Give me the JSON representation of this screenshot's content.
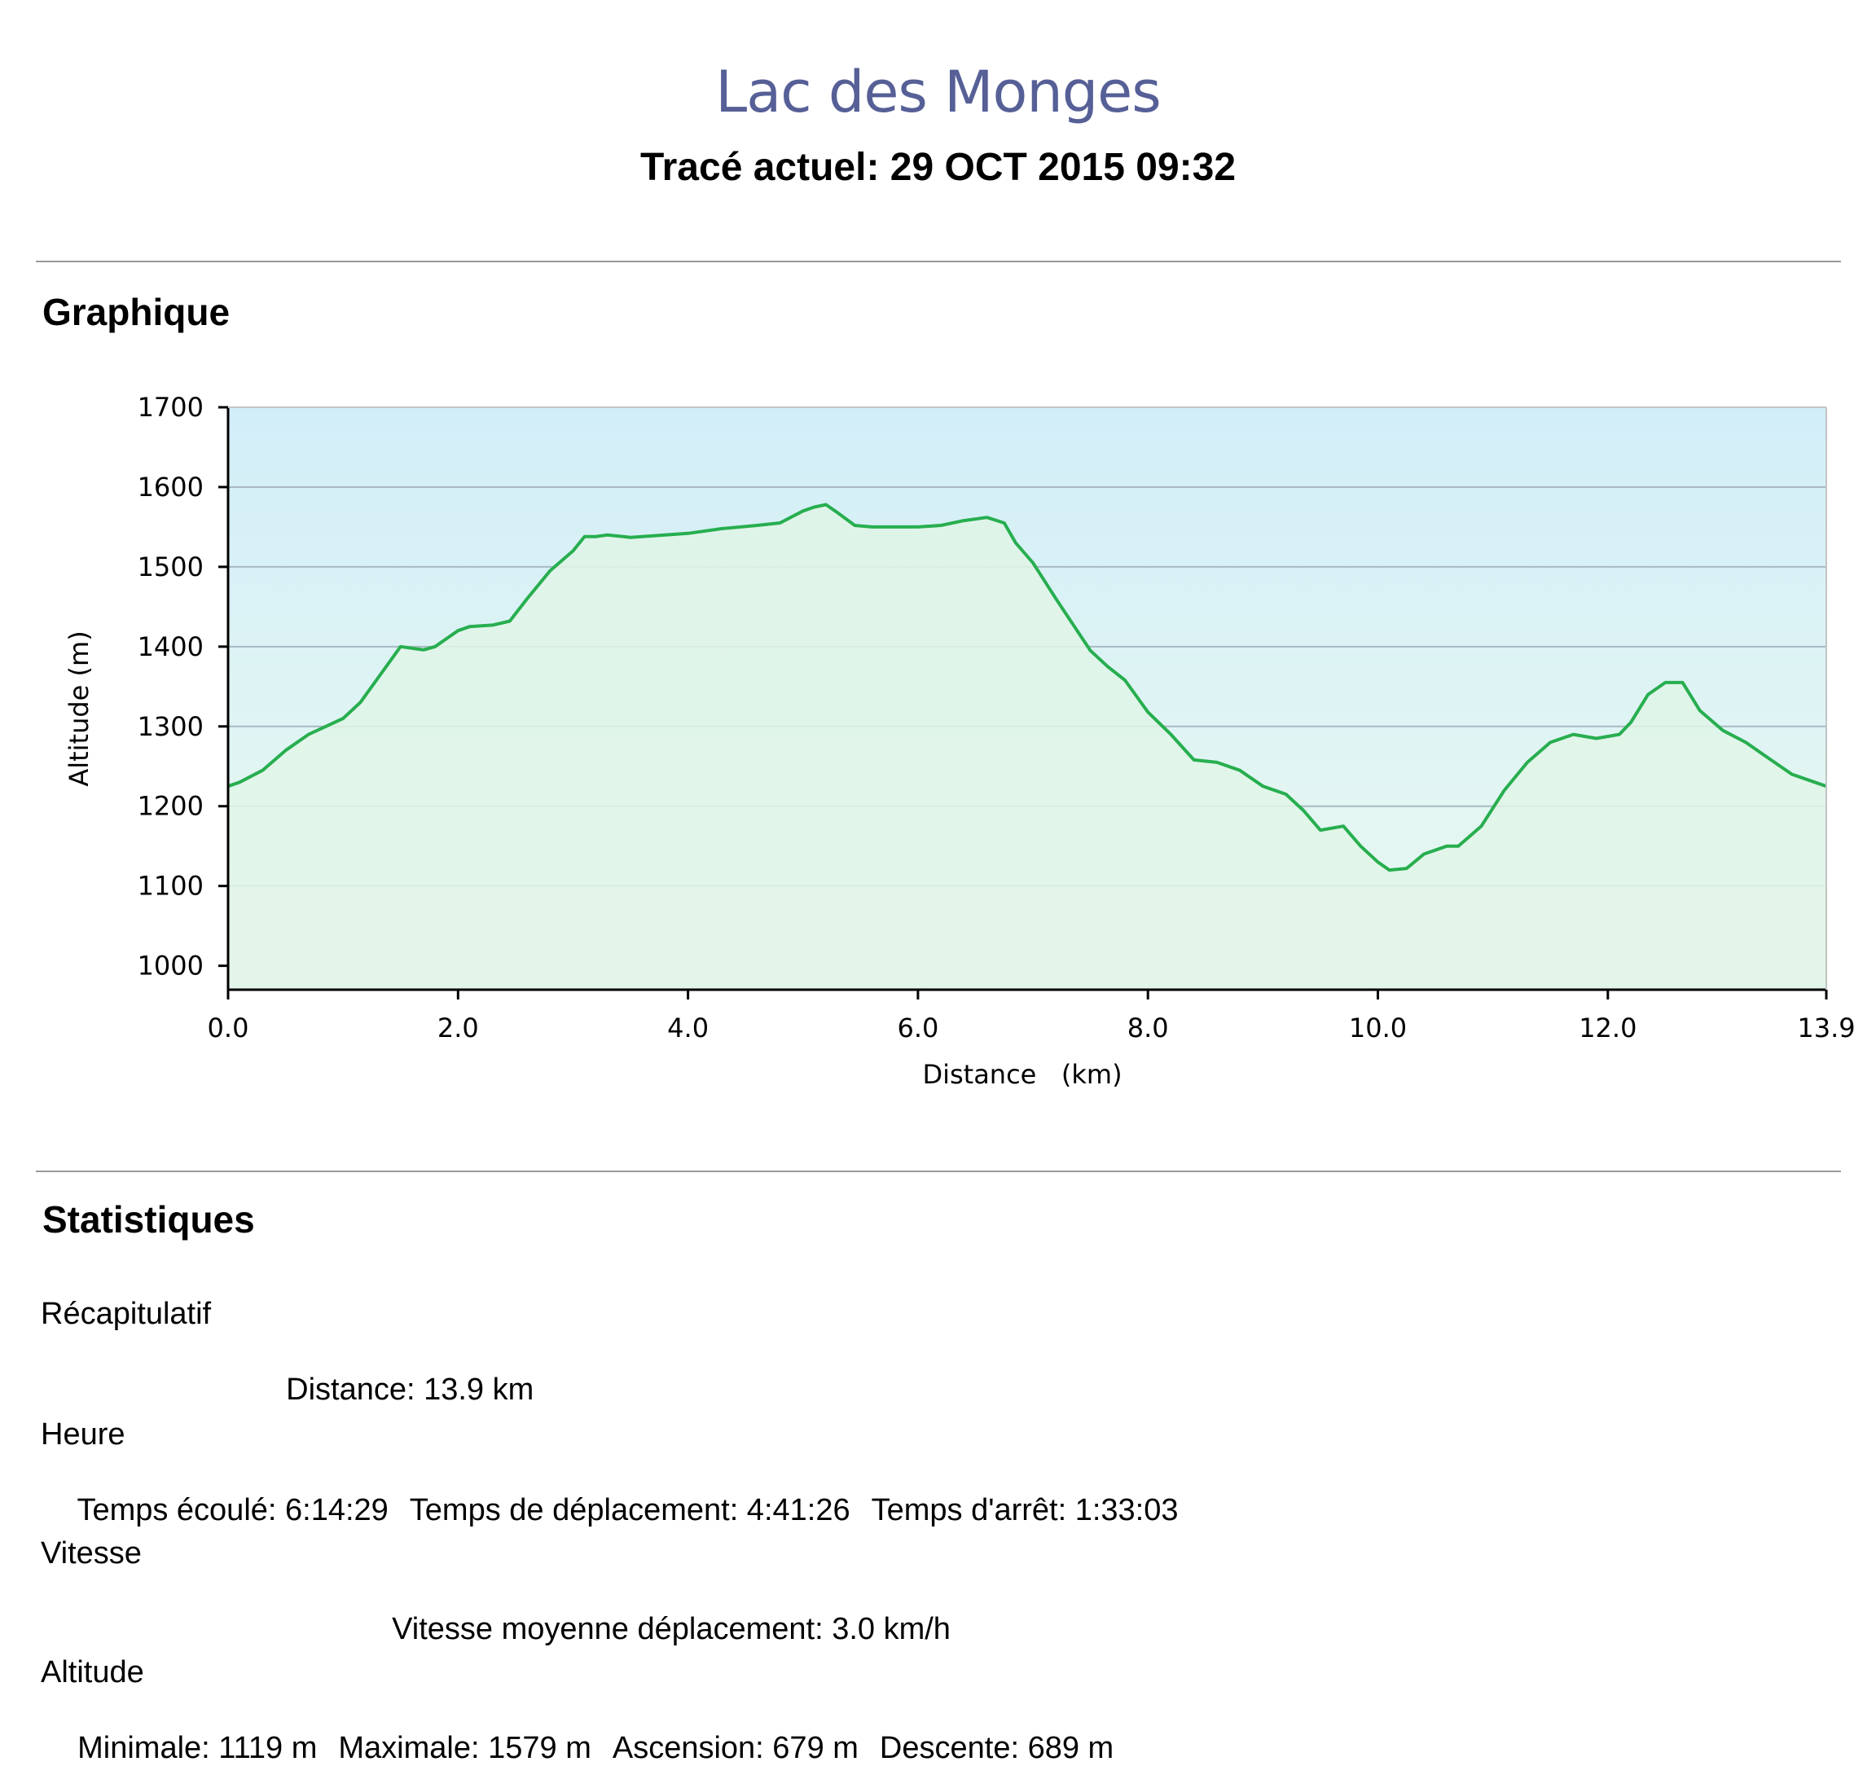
{
  "header": {
    "title": "Lac des Monges",
    "subtitle": "Tracé actuel: 29 OCT 2015 09:32"
  },
  "sections": {
    "chart_title": "Graphique",
    "stats_title": "Statistiques"
  },
  "stats": {
    "summary": {
      "heading": "Récapitulatif",
      "distance": "Distance: 13.9 km"
    },
    "time": {
      "heading": "Heure",
      "elapsed": "Temps écoulé: 6:14:29",
      "moving": "Temps de déplacement: 4:41:26",
      "stopped": "Temps d'arrêt: 1:33:03"
    },
    "speed": {
      "heading": "Vitesse",
      "moving_avg": "Vitesse moyenne déplacement: 3.0 km/h"
    },
    "altitude": {
      "heading": "Altitude",
      "min": "Minimale: 1119 m",
      "max": "Maximale: 1579 m",
      "ascent": "Ascension: 679 m",
      "descent": "Descente: 689 m"
    }
  },
  "colors": {
    "line": "#27ae4f",
    "sky_top": "#d2eef8",
    "sky_bottom": "#eaf9f0",
    "fill": "#e0f5e6",
    "grid": "#a9b9c4",
    "title": "#565f96"
  },
  "chart_data": {
    "type": "area",
    "xlabel": "Distance   (km)",
    "ylabel": "Altitude (m)",
    "xlim": [
      0,
      13.9
    ],
    "ylim": [
      970,
      1700
    ],
    "xticks": [
      "0.0",
      "2.0",
      "4.0",
      "6.0",
      "8.0",
      "10.0",
      "12.0",
      "13.9"
    ],
    "yticks": [
      "1000",
      "1100",
      "1200",
      "1300",
      "1400",
      "1500",
      "1600",
      "1700"
    ],
    "grid": true,
    "series": [
      {
        "x": [
          0,
          0.1,
          0.3,
          0.5,
          0.7,
          0.85,
          1.0,
          1.15,
          1.3,
          1.4,
          1.5,
          1.6,
          1.7,
          1.8,
          1.9,
          2.0,
          2.1,
          2.3,
          2.45,
          2.6,
          2.8,
          3.0,
          3.1,
          3.2,
          3.3,
          3.5,
          3.8,
          4.0,
          4.3,
          4.6,
          4.8,
          5.0,
          5.1,
          5.2,
          5.3,
          5.45,
          5.6,
          5.8,
          6.0,
          6.2,
          6.4,
          6.6,
          6.75,
          6.85,
          7.0,
          7.2,
          7.5,
          7.65,
          7.8,
          8.0,
          8.2,
          8.4,
          8.6,
          8.8,
          9.0,
          9.2,
          9.35,
          9.5,
          9.7,
          9.85,
          10.0,
          10.1,
          10.25,
          10.4,
          10.6,
          10.7,
          10.9,
          11.1,
          11.3,
          11.5,
          11.7,
          11.9,
          12.1,
          12.2,
          12.35,
          12.5,
          12.65,
          12.8,
          13.0,
          13.2,
          13.4,
          13.6,
          13.8,
          13.9
        ],
        "values": [
          1225,
          1230,
          1245,
          1270,
          1290,
          1300,
          1310,
          1330,
          1360,
          1380,
          1400,
          1398,
          1396,
          1400,
          1410,
          1420,
          1425,
          1427,
          1432,
          1460,
          1495,
          1520,
          1538,
          1538,
          1540,
          1537,
          1540,
          1542,
          1548,
          1552,
          1555,
          1570,
          1575,
          1578,
          1568,
          1552,
          1550,
          1550,
          1550,
          1552,
          1558,
          1562,
          1555,
          1530,
          1505,
          1460,
          1395,
          1375,
          1358,
          1318,
          1290,
          1258,
          1255,
          1245,
          1225,
          1215,
          1195,
          1170,
          1175,
          1150,
          1130,
          1120,
          1122,
          1140,
          1150,
          1150,
          1175,
          1220,
          1255,
          1280,
          1290,
          1285,
          1290,
          1305,
          1340,
          1355,
          1355,
          1320,
          1295,
          1280,
          1260,
          1240,
          1230,
          1225
        ]
      }
    ]
  }
}
